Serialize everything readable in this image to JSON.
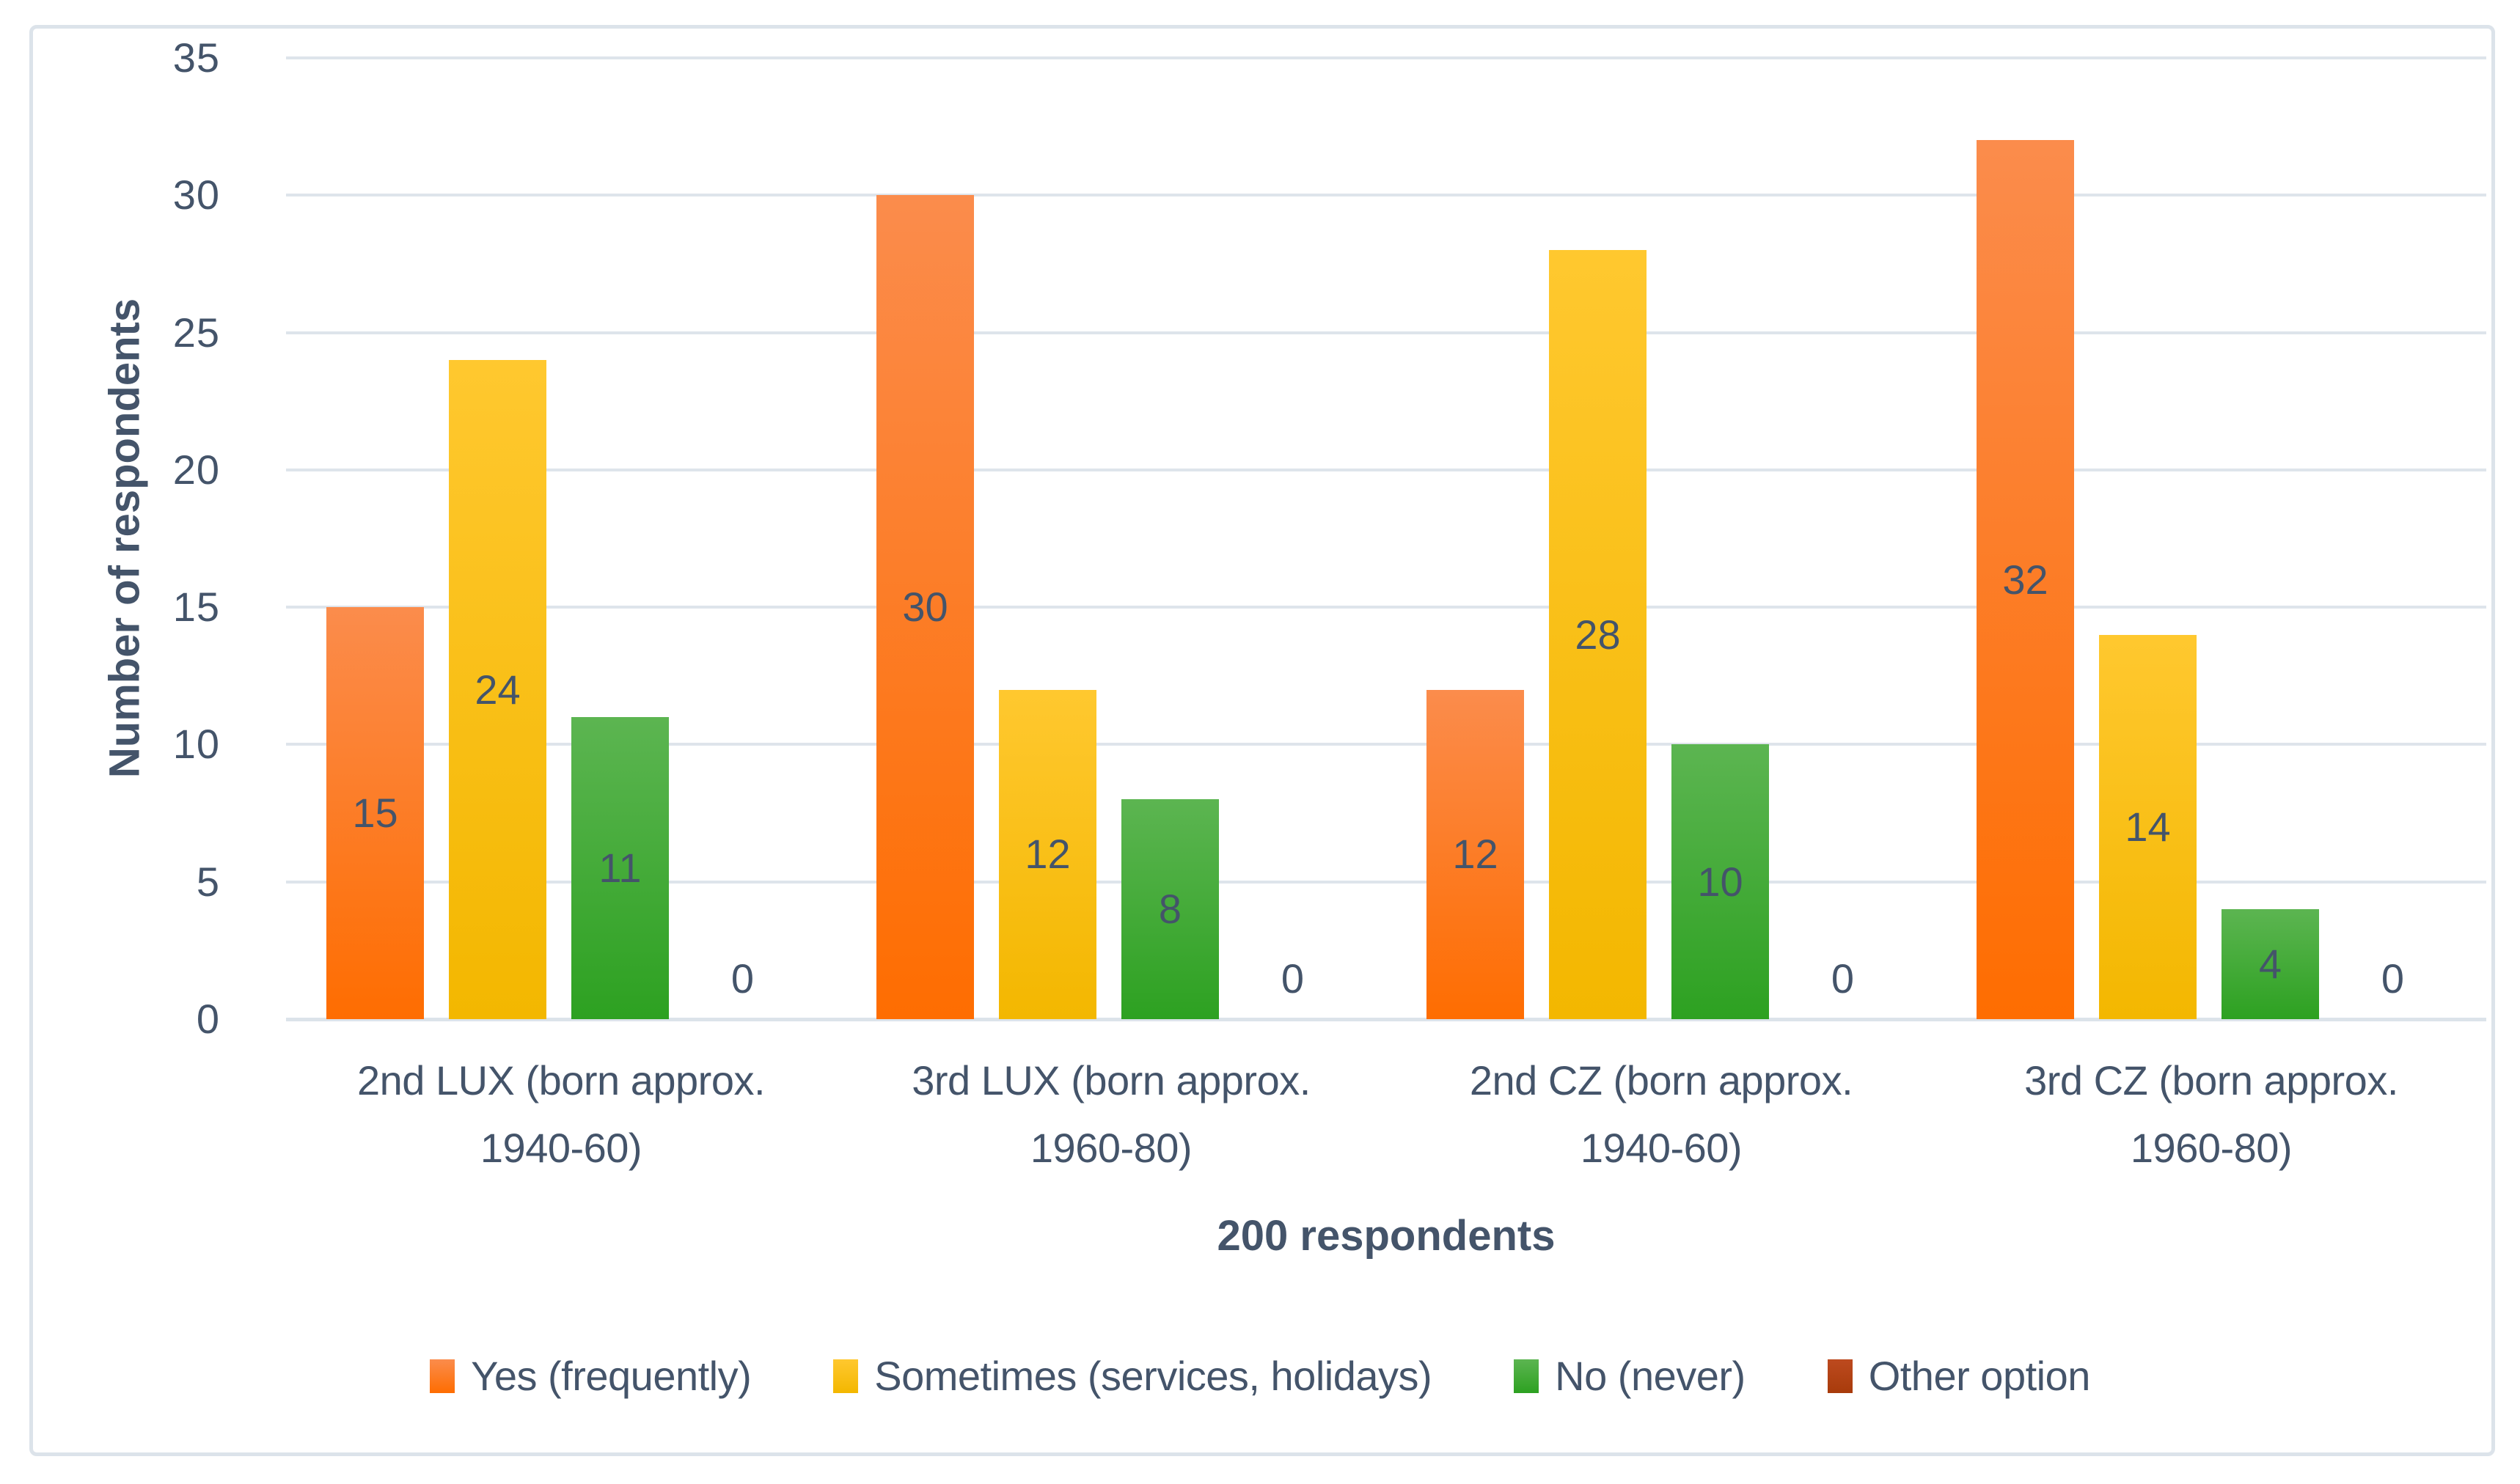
{
  "chart_data": {
    "type": "bar",
    "title": "",
    "categories": [
      "2nd LUX (born approx. 1940-60)",
      "3rd LUX (born approx. 1960-80)",
      "2nd CZ (born approx. 1940-60)",
      "3rd CZ (born approx. 1960-80)"
    ],
    "series": [
      {
        "name": "Yes (frequently)",
        "values": [
          15,
          30,
          12,
          32
        ],
        "color_top": "#fb8c4c",
        "color_bottom": "#fe6d01"
      },
      {
        "name": "Sometimes (services, holidays)",
        "values": [
          24,
          12,
          28,
          14
        ],
        "color_top": "#ffc82f",
        "color_bottom": "#f3b700"
      },
      {
        "name": "No (never)",
        "values": [
          11,
          8,
          10,
          4
        ],
        "color_top": "#5cb551",
        "color_bottom": "#2da121"
      },
      {
        "name": "Other option",
        "values": [
          0,
          0,
          0,
          0
        ],
        "color_top": "#bd4a1f",
        "color_bottom": "#a83b0b"
      }
    ],
    "xlabel": "200 respondents",
    "ylabel": "Number of respondents",
    "yticks": [
      0,
      5,
      10,
      15,
      20,
      25,
      30,
      35
    ],
    "ylim": [
      0,
      35
    ],
    "grid": "horizontal",
    "legend_position": "bottom",
    "data_labels": "inside-center"
  },
  "colors": {
    "text": "#44546a",
    "gridline": "#dee4eb",
    "axis_line": "#dce3ea",
    "frame_border": "#dce3ea",
    "background": "#ffffff"
  }
}
